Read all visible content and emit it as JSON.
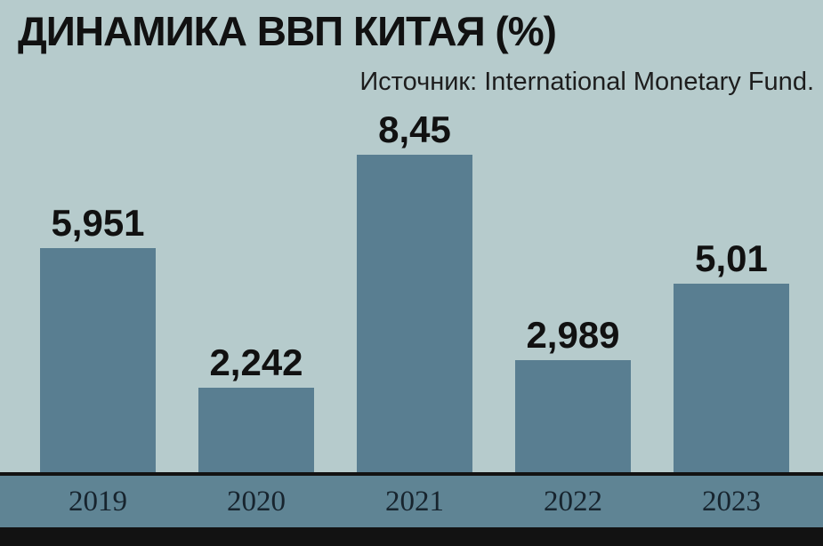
{
  "header": {
    "title": "ДИНАМИКА ВВП КИТАЯ (%)",
    "source": "Источник: International Monetary Fund."
  },
  "chart_data": {
    "type": "bar",
    "title": "ДИНАМИКА ВВП КИТАЯ (%)",
    "subtitle": "Источник: International Monetary Fund.",
    "categories": [
      "2019",
      "2020",
      "2021",
      "2022",
      "2023"
    ],
    "values": [
      5.951,
      2.242,
      8.45,
      2.989,
      5.01
    ],
    "value_labels": [
      "5,951",
      "2,242",
      "8,45",
      "2,989",
      "5,01"
    ],
    "xlabel": "",
    "ylabel": "",
    "ylim": [
      0,
      9
    ],
    "grid": false,
    "legend": false,
    "colors": {
      "background": "#b6cbcc",
      "bar": "#597e91",
      "axis_strip": "#5f8494",
      "text": "#111111",
      "footer": "#121212"
    }
  }
}
